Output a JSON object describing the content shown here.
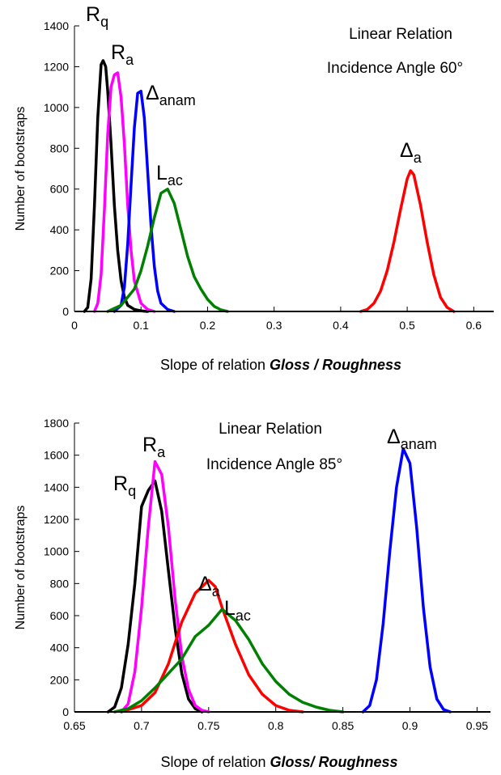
{
  "chart_data": [
    {
      "type": "line",
      "xlabel_prefix": "Slope of relation ",
      "xlabel_emph": "Gloss / Roughness",
      "ylabel": "Number of bootstraps",
      "annotations": [
        "Linear Relation",
        "Incidence Angle 60°"
      ],
      "xlim": [
        0,
        0.63
      ],
      "ylim": [
        0,
        1400
      ],
      "xticks": [
        "0",
        "0.1",
        "0.2",
        "0.3",
        "0.4",
        "0.5",
        "0.6"
      ],
      "yticks": [
        "0",
        "200",
        "400",
        "600",
        "800",
        "1000",
        "1200",
        "1400"
      ],
      "series": [
        {
          "label_main": "R",
          "label_sub": "q",
          "color": "#000000",
          "x": [
            0.015,
            0.02,
            0.025,
            0.03,
            0.035,
            0.04,
            0.043,
            0.047,
            0.05,
            0.055,
            0.06,
            0.065,
            0.07,
            0.075,
            0.08,
            0.09,
            0.1,
            0.11
          ],
          "y": [
            0,
            20,
            160,
            520,
            950,
            1210,
            1230,
            1200,
            1080,
            820,
            520,
            300,
            150,
            70,
            30,
            10,
            3,
            0
          ]
        },
        {
          "label_main": "R",
          "label_sub": "a",
          "color": "#ff00ff",
          "x": [
            0.03,
            0.035,
            0.04,
            0.045,
            0.05,
            0.055,
            0.06,
            0.065,
            0.07,
            0.075,
            0.08,
            0.085,
            0.09,
            0.1,
            0.11,
            0.12
          ],
          "y": [
            0,
            40,
            180,
            500,
            870,
            1100,
            1160,
            1170,
            1050,
            820,
            520,
            300,
            150,
            40,
            10,
            0
          ]
        },
        {
          "label_main": "Δ",
          "label_sub": "anam",
          "color": "#0000ff",
          "x": [
            0.06,
            0.07,
            0.075,
            0.08,
            0.085,
            0.09,
            0.095,
            0.1,
            0.105,
            0.11,
            0.115,
            0.12,
            0.125,
            0.13,
            0.14,
            0.15
          ],
          "y": [
            0,
            30,
            120,
            330,
            620,
            900,
            1070,
            1080,
            950,
            690,
            420,
            220,
            100,
            40,
            10,
            0
          ]
        },
        {
          "label_main": "L",
          "label_sub": "ac",
          "color": "#008000",
          "x": [
            0.05,
            0.07,
            0.09,
            0.1,
            0.11,
            0.12,
            0.13,
            0.14,
            0.15,
            0.16,
            0.17,
            0.18,
            0.19,
            0.2,
            0.21,
            0.22,
            0.23
          ],
          "y": [
            0,
            30,
            110,
            200,
            320,
            460,
            580,
            600,
            530,
            400,
            270,
            170,
            110,
            60,
            25,
            8,
            0
          ]
        },
        {
          "label_main": "Δ",
          "label_sub": "a",
          "color": "#ff0000",
          "x": [
            0.43,
            0.44,
            0.45,
            0.46,
            0.47,
            0.48,
            0.49,
            0.5,
            0.505,
            0.51,
            0.52,
            0.53,
            0.54,
            0.55,
            0.56,
            0.57
          ],
          "y": [
            0,
            10,
            40,
            100,
            200,
            340,
            500,
            650,
            690,
            670,
            520,
            340,
            180,
            70,
            20,
            0
          ]
        }
      ]
    },
    {
      "type": "line",
      "xlabel_prefix": "Slope of relation ",
      "xlabel_emph": "Gloss/ Roughness",
      "ylabel": "Number of bootstraps",
      "annotations": [
        "Linear Relation",
        "Incidence Angle 85°"
      ],
      "xlim": [
        0.65,
        0.96
      ],
      "ylim": [
        0,
        1800
      ],
      "xticks": [
        "0.65",
        "0.7",
        "0.75",
        "0.8",
        "0.85",
        "0.9",
        "0.95"
      ],
      "yticks": [
        "0",
        "200",
        "400",
        "600",
        "800",
        "1000",
        "1200",
        "1400",
        "1600",
        "1800"
      ],
      "series": [
        {
          "label_main": "R",
          "label_sub": "q",
          "color": "#000000",
          "x": [
            0.675,
            0.68,
            0.685,
            0.69,
            0.695,
            0.7,
            0.705,
            0.71,
            0.715,
            0.72,
            0.725,
            0.73,
            0.735,
            0.74,
            0.745
          ],
          "y": [
            0,
            30,
            150,
            420,
            800,
            1280,
            1380,
            1440,
            1250,
            880,
            520,
            240,
            80,
            20,
            0
          ]
        },
        {
          "label_main": "R",
          "label_sub": "a",
          "color": "#ff00ff",
          "x": [
            0.685,
            0.69,
            0.695,
            0.7,
            0.705,
            0.71,
            0.715,
            0.72,
            0.725,
            0.73,
            0.735,
            0.74,
            0.745,
            0.75
          ],
          "y": [
            0,
            50,
            250,
            650,
            1150,
            1560,
            1480,
            1150,
            700,
            350,
            140,
            40,
            10,
            0
          ]
        },
        {
          "label_main": "Δ",
          "label_sub": "a",
          "color": "#ff0000",
          "x": [
            0.685,
            0.7,
            0.71,
            0.72,
            0.73,
            0.74,
            0.75,
            0.755,
            0.76,
            0.77,
            0.78,
            0.79,
            0.8,
            0.81,
            0.82
          ],
          "y": [
            0,
            40,
            120,
            300,
            560,
            740,
            820,
            780,
            650,
            420,
            230,
            110,
            40,
            10,
            0
          ]
        },
        {
          "label_main": "L",
          "label_sub": "ac",
          "color": "#008000",
          "x": [
            0.68,
            0.69,
            0.7,
            0.71,
            0.72,
            0.73,
            0.74,
            0.75,
            0.76,
            0.77,
            0.78,
            0.79,
            0.8,
            0.81,
            0.82,
            0.83,
            0.84,
            0.85
          ],
          "y": [
            0,
            20,
            70,
            150,
            240,
            330,
            470,
            540,
            640,
            570,
            450,
            300,
            190,
            110,
            60,
            30,
            10,
            0
          ]
        },
        {
          "label_main": "Δ",
          "label_sub": "anam",
          "color": "#0000ff",
          "x": [
            0.865,
            0.87,
            0.875,
            0.88,
            0.885,
            0.89,
            0.895,
            0.9,
            0.905,
            0.91,
            0.915,
            0.92,
            0.925,
            0.93
          ],
          "y": [
            0,
            40,
            200,
            550,
            1000,
            1400,
            1640,
            1550,
            1150,
            650,
            280,
            80,
            15,
            0
          ]
        }
      ]
    }
  ]
}
